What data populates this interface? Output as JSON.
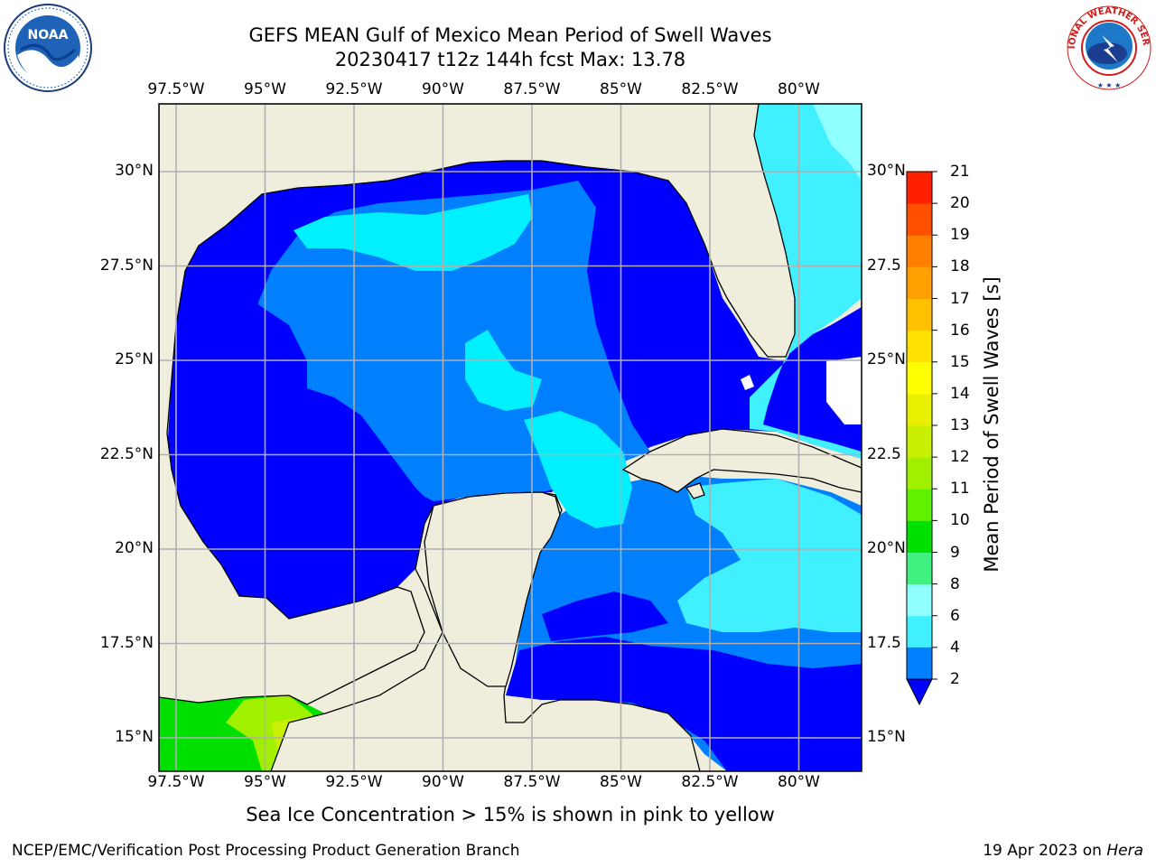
{
  "header": {
    "title_line1": "GEFS MEAN Gulf of Mexico Mean Period of Swell Waves",
    "title_line2": "20230417 t12z 144h fcst   Max: 13.78"
  },
  "map": {
    "lon_labels": [
      "97.5°W",
      "95°W",
      "92.5°W",
      "90°W",
      "87.5°W",
      "85°W",
      "82.5°W",
      "80°W"
    ],
    "lat_labels_left": [
      "30°N",
      "27.5°N",
      "25°N",
      "22.5°N",
      "20°N",
      "17.5°N",
      "15°N"
    ],
    "lat_labels_right": [
      "30°N",
      "27.5",
      "25°N",
      "22.5",
      "20°N",
      "17.5",
      "15°N"
    ],
    "land_color": "#efeddc",
    "grid_color": "#b0b0b0"
  },
  "colorbar": {
    "title": "Mean Period of Swell Waves [s]",
    "tick_labels": [
      "2",
      "4",
      "6",
      "8",
      "9",
      "10",
      "11",
      "12",
      "13",
      "14",
      "15",
      "16",
      "17",
      "18",
      "19",
      "20",
      "21"
    ],
    "colors": [
      "#0080ff",
      "#00e0ff",
      "#40f0ff",
      "#90ffff",
      "#40f080",
      "#00e000",
      "#60f000",
      "#a0f000",
      "#c8f000",
      "#e8f000",
      "#ffff00",
      "#ffe000",
      "#ffc000",
      "#ffa000",
      "#ff8000",
      "#ff5000",
      "#ff2000",
      "#ff0000"
    ],
    "under_color": "#0000ff"
  },
  "footer": {
    "ice_note": "Sea Ice Concentration > 15% is shown in pink to yellow",
    "credit": "NCEP/EMC/Verification Post Processing Product Generation Branch",
    "date": "19 Apr 2023 on",
    "host": "Hera"
  },
  "logos": {
    "noaa_text": "NOAA",
    "nws_text": "NATIONAL WEATHER SERVICE"
  }
}
